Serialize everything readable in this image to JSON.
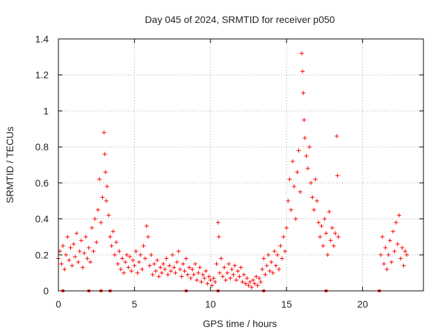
{
  "chart_data": {
    "type": "scatter",
    "title": "Day 045 of 2024, SRMTID for receiver p050",
    "xlabel": "GPS time / hours",
    "ylabel": "SRMTID / TECUs",
    "xlim": [
      0,
      24
    ],
    "ylim": [
      0,
      1.4
    ],
    "x_ticks": [
      0,
      5,
      10,
      15,
      20
    ],
    "x_tick_labels": [
      "0",
      "5",
      "10",
      "15",
      "20"
    ],
    "y_ticks": [
      0,
      0.2,
      0.4,
      0.6,
      0.8,
      1.0,
      1.2,
      1.4
    ],
    "y_tick_labels": [
      "0",
      "0.2",
      "0.4",
      "0.6",
      "0.8",
      "1",
      "1.2",
      "1.4"
    ],
    "grid": true,
    "marker": "+",
    "series_color": "#ff0000",
    "series": [
      {
        "name": "SRMTID",
        "points": [
          [
            0.0,
            0.18
          ],
          [
            0.1,
            0.22
          ],
          [
            0.2,
            0.15
          ],
          [
            0.3,
            0.25
          ],
          [
            0.4,
            0.12
          ],
          [
            0.5,
            0.2
          ],
          [
            0.6,
            0.3
          ],
          [
            0.7,
            0.17
          ],
          [
            0.8,
            0.24
          ],
          [
            0.9,
            0.14
          ],
          [
            1.0,
            0.26
          ],
          [
            1.1,
            0.19
          ],
          [
            1.2,
            0.32
          ],
          [
            1.3,
            0.16
          ],
          [
            1.4,
            0.22
          ],
          [
            1.5,
            0.28
          ],
          [
            1.6,
            0.13
          ],
          [
            1.7,
            0.21
          ],
          [
            1.8,
            0.3
          ],
          [
            1.9,
            0.18
          ],
          [
            2.0,
            0.24
          ],
          [
            2.1,
            0.16
          ],
          [
            2.2,
            0.35
          ],
          [
            2.3,
            0.22
          ],
          [
            2.4,
            0.4
          ],
          [
            2.5,
            0.27
          ],
          [
            2.6,
            0.45
          ],
          [
            2.7,
            0.62
          ],
          [
            2.8,
            0.38
          ],
          [
            2.9,
            0.52
          ],
          [
            3.0,
            0.88
          ],
          [
            3.05,
            0.76
          ],
          [
            3.1,
            0.66
          ],
          [
            3.15,
            0.5
          ],
          [
            3.2,
            0.58
          ],
          [
            3.3,
            0.42
          ],
          [
            3.4,
            0.3
          ],
          [
            3.5,
            0.25
          ],
          [
            3.6,
            0.33
          ],
          [
            3.7,
            0.2
          ],
          [
            3.8,
            0.27
          ],
          [
            3.9,
            0.15
          ],
          [
            4.0,
            0.22
          ],
          [
            4.1,
            0.12
          ],
          [
            4.2,
            0.18
          ],
          [
            4.3,
            0.1
          ],
          [
            4.4,
            0.16
          ],
          [
            4.5,
            0.2
          ],
          [
            4.6,
            0.13
          ],
          [
            4.7,
            0.19
          ],
          [
            4.8,
            0.11
          ],
          [
            4.9,
            0.17
          ],
          [
            5.0,
            0.14
          ],
          [
            5.1,
            0.22
          ],
          [
            5.2,
            0.1
          ],
          [
            5.3,
            0.16
          ],
          [
            5.4,
            0.2
          ],
          [
            5.5,
            0.12
          ],
          [
            5.6,
            0.25
          ],
          [
            5.7,
            0.18
          ],
          [
            5.8,
            0.36
          ],
          [
            5.9,
            0.3
          ],
          [
            6.0,
            0.14
          ],
          [
            6.1,
            0.2
          ],
          [
            6.2,
            0.09
          ],
          [
            6.3,
            0.15
          ],
          [
            6.4,
            0.11
          ],
          [
            6.5,
            0.17
          ],
          [
            6.6,
            0.08
          ],
          [
            6.7,
            0.13
          ],
          [
            6.8,
            0.1
          ],
          [
            6.9,
            0.15
          ],
          [
            7.0,
            0.12
          ],
          [
            7.1,
            0.18
          ],
          [
            7.2,
            0.09
          ],
          [
            7.3,
            0.14
          ],
          [
            7.4,
            0.11
          ],
          [
            7.5,
            0.2
          ],
          [
            7.6,
            0.13
          ],
          [
            7.7,
            0.1
          ],
          [
            7.8,
            0.16
          ],
          [
            7.9,
            0.22
          ],
          [
            8.0,
            0.12
          ],
          [
            8.1,
            0.08
          ],
          [
            8.2,
            0.15
          ],
          [
            8.3,
            0.11
          ],
          [
            8.4,
            0.18
          ],
          [
            8.5,
            0.09
          ],
          [
            8.6,
            0.13
          ],
          [
            8.7,
            0.07
          ],
          [
            8.8,
            0.12
          ],
          [
            8.9,
            0.09
          ],
          [
            9.0,
            0.15
          ],
          [
            9.1,
            0.06
          ],
          [
            9.2,
            0.1
          ],
          [
            9.3,
            0.13
          ],
          [
            9.4,
            0.05
          ],
          [
            9.5,
            0.09
          ],
          [
            9.6,
            0.07
          ],
          [
            9.7,
            0.11
          ],
          [
            9.8,
            0.04
          ],
          [
            9.9,
            0.08
          ],
          [
            10.0,
            0.06
          ],
          [
            10.1,
            0.03
          ],
          [
            10.2,
            0.07
          ],
          [
            10.3,
            0.05
          ],
          [
            10.4,
            0.15
          ],
          [
            10.5,
            0.38
          ],
          [
            10.55,
            0.3
          ],
          [
            10.6,
            0.1
          ],
          [
            10.7,
            0.18
          ],
          [
            10.8,
            0.08
          ],
          [
            10.9,
            0.13
          ],
          [
            11.0,
            0.06
          ],
          [
            11.1,
            0.1
          ],
          [
            11.2,
            0.15
          ],
          [
            11.3,
            0.07
          ],
          [
            11.4,
            0.12
          ],
          [
            11.5,
            0.09
          ],
          [
            11.6,
            0.14
          ],
          [
            11.7,
            0.06
          ],
          [
            11.8,
            0.11
          ],
          [
            11.9,
            0.08
          ],
          [
            12.0,
            0.13
          ],
          [
            12.1,
            0.05
          ],
          [
            12.2,
            0.09
          ],
          [
            12.3,
            0.04
          ],
          [
            12.4,
            0.07
          ],
          [
            12.5,
            0.03
          ],
          [
            12.6,
            0.05
          ],
          [
            12.7,
            0.02
          ],
          [
            12.8,
            0.06
          ],
          [
            12.9,
            0.04
          ],
          [
            13.0,
            0.08
          ],
          [
            13.1,
            0.03
          ],
          [
            13.2,
            0.07
          ],
          [
            13.3,
            0.05
          ],
          [
            13.4,
            0.12
          ],
          [
            13.5,
            0.18
          ],
          [
            13.6,
            0.09
          ],
          [
            13.7,
            0.14
          ],
          [
            13.8,
            0.2
          ],
          [
            13.9,
            0.11
          ],
          [
            14.0,
            0.16
          ],
          [
            14.1,
            0.1
          ],
          [
            14.2,
            0.22
          ],
          [
            14.3,
            0.14
          ],
          [
            14.4,
            0.2
          ],
          [
            14.5,
            0.12
          ],
          [
            14.6,
            0.25
          ],
          [
            14.7,
            0.18
          ],
          [
            14.8,
            0.3
          ],
          [
            14.9,
            0.22
          ],
          [
            15.0,
            0.35
          ],
          [
            15.1,
            0.5
          ],
          [
            15.2,
            0.62
          ],
          [
            15.3,
            0.45
          ],
          [
            15.4,
            0.72
          ],
          [
            15.5,
            0.58
          ],
          [
            15.6,
            0.4
          ],
          [
            15.7,
            0.66
          ],
          [
            15.8,
            0.78
          ],
          [
            15.9,
            0.55
          ],
          [
            16.0,
            1.32
          ],
          [
            16.05,
            1.22
          ],
          [
            16.1,
            1.1
          ],
          [
            16.15,
            0.95
          ],
          [
            16.2,
            0.85
          ],
          [
            16.3,
            0.75
          ],
          [
            16.4,
            0.68
          ],
          [
            16.5,
            0.8
          ],
          [
            16.6,
            0.6
          ],
          [
            16.7,
            0.52
          ],
          [
            16.8,
            0.45
          ],
          [
            16.9,
            0.62
          ],
          [
            17.0,
            0.5
          ],
          [
            17.1,
            0.38
          ],
          [
            17.2,
            0.3
          ],
          [
            17.3,
            0.36
          ],
          [
            17.4,
            0.25
          ],
          [
            17.5,
            0.4
          ],
          [
            17.6,
            0.32
          ],
          [
            17.7,
            0.2
          ],
          [
            17.8,
            0.44
          ],
          [
            17.9,
            0.28
          ],
          [
            18.0,
            0.35
          ],
          [
            18.1,
            0.25
          ],
          [
            18.2,
            0.32
          ],
          [
            18.3,
            0.86
          ],
          [
            18.35,
            0.64
          ],
          [
            18.4,
            0.3
          ],
          [
            21.2,
            0.2
          ],
          [
            21.3,
            0.3
          ],
          [
            21.4,
            0.15
          ],
          [
            21.5,
            0.24
          ],
          [
            21.6,
            0.12
          ],
          [
            21.7,
            0.2
          ],
          [
            21.8,
            0.28
          ],
          [
            21.9,
            0.16
          ],
          [
            22.0,
            0.33
          ],
          [
            22.1,
            0.22
          ],
          [
            22.2,
            0.38
          ],
          [
            22.3,
            0.26
          ],
          [
            22.4,
            0.42
          ],
          [
            22.5,
            0.18
          ],
          [
            22.6,
            0.24
          ],
          [
            22.7,
            0.14
          ],
          [
            22.8,
            0.22
          ],
          [
            22.9,
            0.2
          ]
        ]
      }
    ],
    "baseline_marks_x": [
      0.3,
      2.0,
      2.8,
      3.4,
      8.4,
      10.5,
      13.5,
      17.6,
      21.1
    ]
  }
}
